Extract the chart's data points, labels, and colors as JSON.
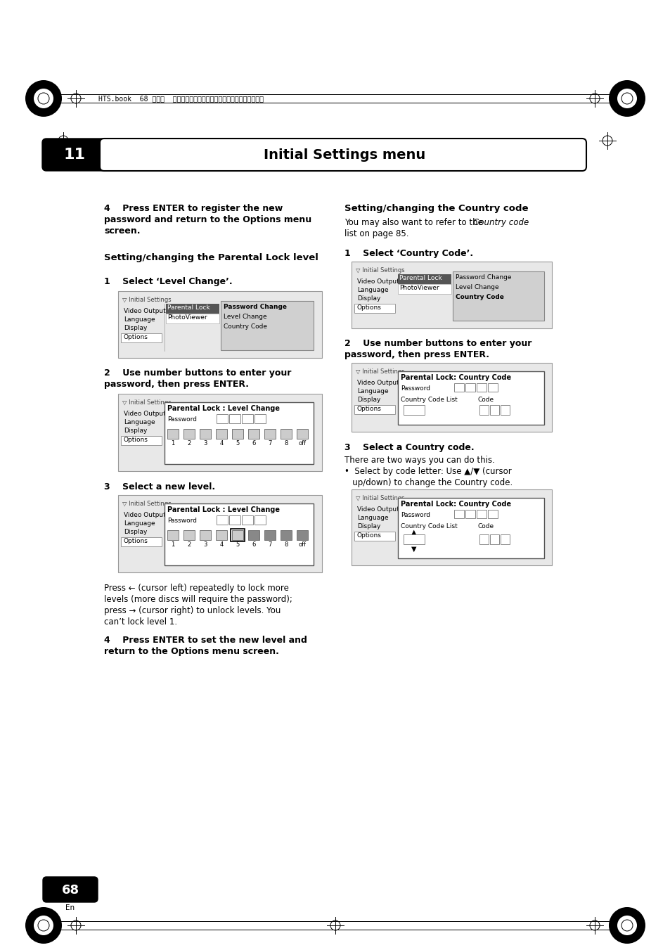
{
  "bg_color": "#ffffff",
  "title_number": "11",
  "title_text": "Initial Settings menu",
  "header_text": "HTS.book  68 ページ  ２００３年２月２５日　火曜日　午後２時３７分",
  "page_number": "68",
  "page_lang": "En"
}
